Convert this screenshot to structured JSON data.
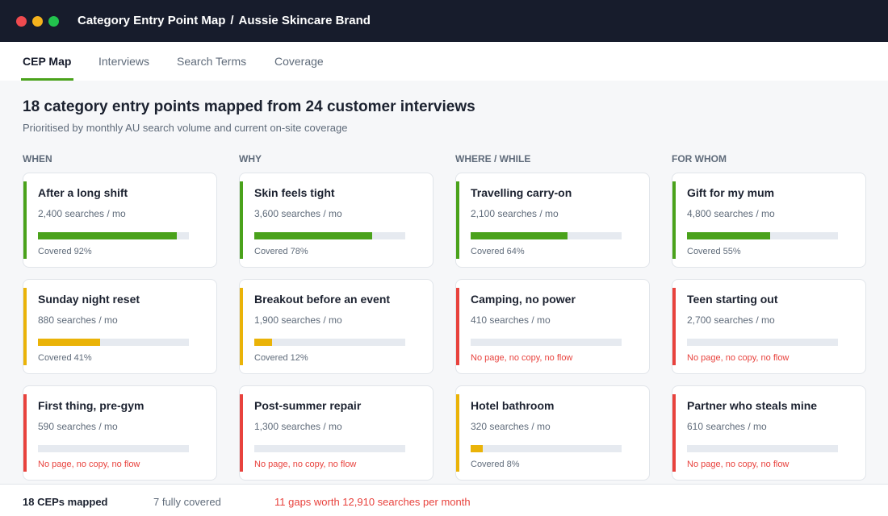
{
  "window": {
    "title": "Category Entry Point Map",
    "separator": "/",
    "brand": "Aussie Skincare Brand"
  },
  "tabs": [
    {
      "label": "CEP Map",
      "active": true
    },
    {
      "label": "Interviews",
      "active": false
    },
    {
      "label": "Search Terms",
      "active": false
    },
    {
      "label": "Coverage",
      "active": false
    }
  ],
  "header": {
    "headline": "18 category entry points mapped from 24 customer interviews",
    "subline": "Prioritised by monthly AU search volume and current on-site coverage"
  },
  "colors": {
    "good": "#4aa21b",
    "partial": "#eab308",
    "gap": "#e8423d"
  },
  "columns": [
    {
      "title": "WHEN",
      "cards": [
        {
          "title": "After a long shift",
          "volume": "2,400 searches / mo",
          "coverage": 0.92,
          "level": "good",
          "status": "Covered 92%"
        },
        {
          "title": "Sunday night reset",
          "volume": "880 searches / mo",
          "coverage": 0.41,
          "level": "partial",
          "status": "Covered 41%"
        },
        {
          "title": "First thing, pre-gym",
          "volume": "590 searches / mo",
          "coverage": 0,
          "level": "gap",
          "status": "No page, no copy, no flow"
        }
      ]
    },
    {
      "title": "WHY",
      "cards": [
        {
          "title": "Skin feels tight",
          "volume": "3,600 searches / mo",
          "coverage": 0.78,
          "level": "good",
          "status": "Covered 78%"
        },
        {
          "title": "Breakout before an event",
          "volume": "1,900 searches / mo",
          "coverage": 0.12,
          "level": "partial",
          "status": "Covered 12%"
        },
        {
          "title": "Post-summer repair",
          "volume": "1,300 searches / mo",
          "coverage": 0,
          "level": "gap",
          "status": "No page, no copy, no flow"
        }
      ]
    },
    {
      "title": "WHERE / WHILE",
      "cards": [
        {
          "title": "Travelling carry-on",
          "volume": "2,100 searches / mo",
          "coverage": 0.64,
          "level": "good",
          "status": "Covered 64%"
        },
        {
          "title": "Camping, no power",
          "volume": "410 searches / mo",
          "coverage": 0,
          "level": "gap",
          "status": "No page, no copy, no flow"
        },
        {
          "title": "Hotel bathroom",
          "volume": "320 searches / mo",
          "coverage": 0.08,
          "level": "partial",
          "status": "Covered 8%"
        }
      ]
    },
    {
      "title": "FOR WHOM",
      "cards": [
        {
          "title": "Gift for my mum",
          "volume": "4,800 searches / mo",
          "coverage": 0.55,
          "level": "good",
          "status": "Covered 55%"
        },
        {
          "title": "Teen starting out",
          "volume": "2,700 searches / mo",
          "coverage": 0,
          "level": "gap",
          "status": "No page, no copy, no flow"
        },
        {
          "title": "Partner who steals mine",
          "volume": "610 searches / mo",
          "coverage": 0,
          "level": "gap",
          "status": "No page, no copy, no flow"
        }
      ]
    }
  ],
  "footer": {
    "mapped": "18 CEPs mapped",
    "covered": "7 fully covered",
    "gaps": "11 gaps worth 12,910 searches per month"
  }
}
